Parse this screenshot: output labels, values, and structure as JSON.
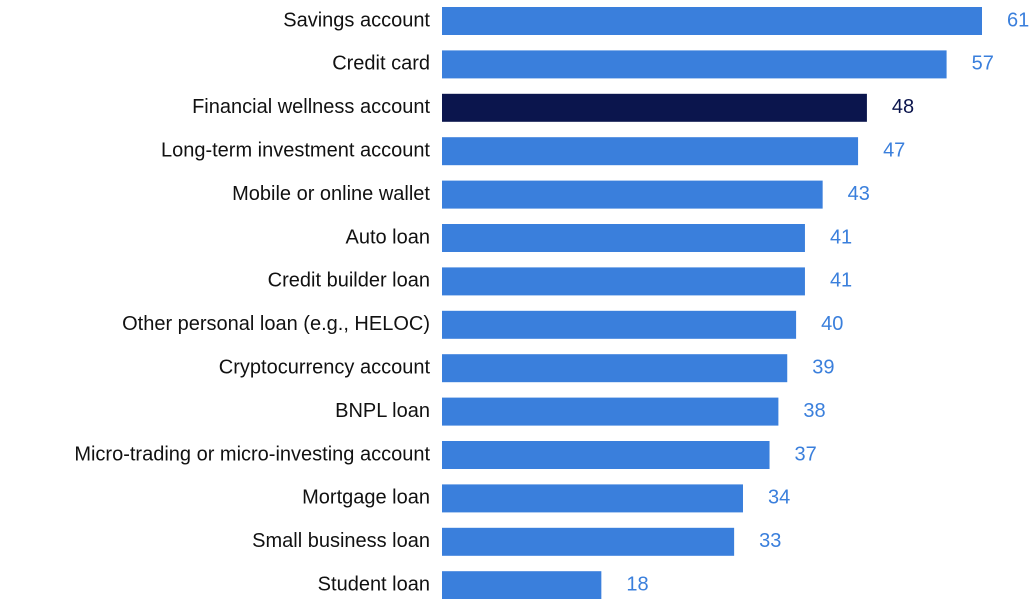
{
  "chart_data": {
    "type": "bar",
    "orientation": "horizontal",
    "categories": [
      "Savings account",
      "Credit card",
      "Financial wellness account",
      "Long-term investment account",
      "Mobile or online wallet",
      "Auto loan",
      "Credit builder loan",
      "Other personal loan (e.g., HELOC)",
      "Cryptocurrency account",
      "BNPL loan",
      "Micro-trading or micro-investing account",
      "Mortgage loan",
      "Small business loan",
      "Student loan"
    ],
    "values": [
      61,
      57,
      48,
      47,
      43,
      41,
      41,
      40,
      39,
      38,
      37,
      34,
      33,
      18
    ],
    "colors": [
      "#3a7fdc",
      "#3a7fdc",
      "#0b154d",
      "#3a7fdc",
      "#3a7fdc",
      "#3a7fdc",
      "#3a7fdc",
      "#3a7fdc",
      "#3a7fdc",
      "#3a7fdc",
      "#3a7fdc",
      "#3a7fdc",
      "#3a7fdc",
      "#3a7fdc"
    ]
  }
}
